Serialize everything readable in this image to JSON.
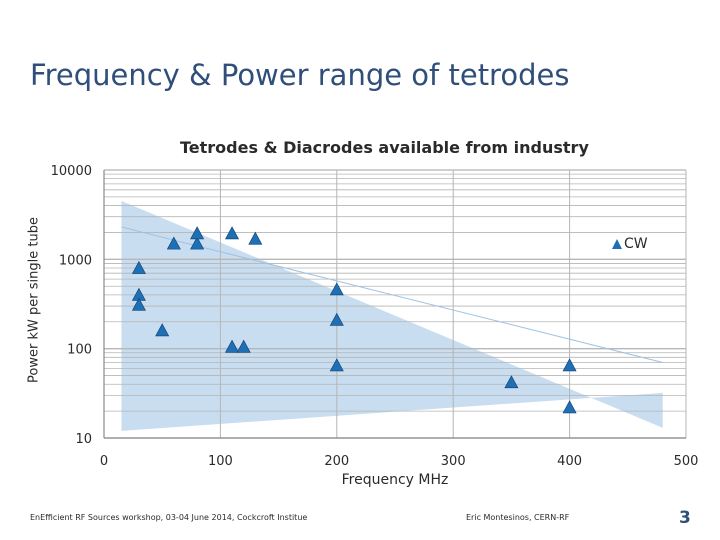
{
  "slide": {
    "title": "Frequency & Power range of tetrodes",
    "footer_left": "EnEfficient RF Sources workshop, 03-04 June 2014, Cockcroft Institue",
    "footer_right": "Eric Montesinos, CERN-RF",
    "page_number": "3"
  },
  "colors": {
    "accent": "#1f6fb5",
    "band": "#c9ddf0",
    "grid": "#b5b5b5",
    "title": "#2f4f7a"
  },
  "chart_data": {
    "type": "scatter",
    "title": "Tetrodes & Diacrodes available from industry",
    "xlabel": "Frequency MHz",
    "ylabel": "Power kW per single tube",
    "xlim": [
      0,
      500
    ],
    "ylim": [
      10,
      10000
    ],
    "yscale": "log",
    "x_ticks": [
      "0",
      "100",
      "200",
      "300",
      "400",
      "500"
    ],
    "y_ticks": [
      "10",
      "100",
      "1000",
      "10000"
    ],
    "legend": {
      "position": "right",
      "entries": [
        "CW"
      ]
    },
    "envelope": [
      [
        15,
        4500
      ],
      [
        480,
        13
      ],
      [
        480,
        32
      ],
      [
        15,
        12
      ]
    ],
    "trend_line": [
      [
        15,
        2300
      ],
      [
        480,
        70
      ]
    ],
    "series": [
      {
        "name": "CW",
        "marker": "triangle",
        "x": [
          30,
          30,
          30,
          50,
          60,
          80,
          80,
          110,
          110,
          120,
          130,
          200,
          200,
          200,
          350,
          400,
          400
        ],
        "y": [
          800,
          400,
          310,
          160,
          1500,
          1500,
          1950,
          1950,
          105,
          105,
          1700,
          460,
          210,
          65,
          42,
          65,
          22
        ]
      }
    ]
  }
}
